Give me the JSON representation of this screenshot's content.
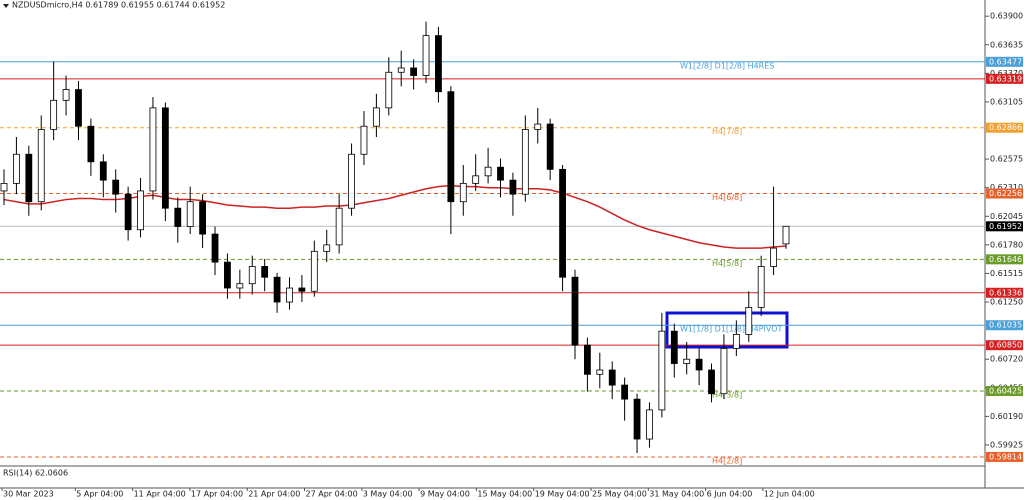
{
  "chart_data": {
    "type": "candlestick",
    "title": "NZDUSDmicro,H4  0.61789 0.61955 0.61744 0.61952",
    "ylim": [
      0.5973,
      0.6405
    ],
    "yticks": [
      {
        "value": 0.639,
        "label": "0.63900"
      },
      0.63635,
      {
        "value": 0.6337,
        "label": "0.63370"
      },
      0.63105,
      0.62575,
      {
        "value": 0.6231,
        "label": "0.62310"
      },
      0.62045,
      {
        "value": 0.6178,
        "label": "0.61780"
      },
      0.61515,
      {
        "value": 0.6125,
        "label": "0.61250"
      },
      {
        "value": 0.6072,
        "label": "0.60720"
      },
      0.60455,
      {
        "value": 0.6019,
        "label": "0.60190"
      },
      0.59925
    ],
    "dates": [
      "30 Mar 2023",
      "5 Apr 04:00",
      "11 Apr 04:00",
      "17 Apr 04:00",
      "21 Apr 04:00",
      "27 Apr 04:00",
      "3 May 04:00",
      "9 May 04:00",
      "15 May 04:00",
      "19 May 04:00",
      "25 May 04:00",
      "31 May 04:00",
      "6 Jun 04:00",
      "12 Jun 04:00"
    ],
    "open": [
      0.6228,
      0.6235,
      0.6262,
      0.6218,
      0.6285,
      0.6312,
      0.6322,
      0.6288,
      0.6255,
      0.6238,
      0.6225,
      0.6192,
      0.6228,
      0.6305,
      0.6212,
      0.6195,
      0.6218,
      0.6188,
      0.6162,
      0.6138,
      0.6142,
      0.6158,
      0.6148,
      0.6125,
      0.6138,
      0.6135,
      0.6172,
      0.6178,
      0.6212,
      0.6262,
      0.6288,
      0.6305,
      0.6338,
      0.6342,
      0.6335,
      0.6372,
      0.632,
      0.6218,
      0.6235,
      0.6242,
      0.625,
      0.6238,
      0.6225,
      0.6285,
      0.629,
      0.6248,
      0.6148,
      0.6085,
      0.6058,
      0.6062,
      0.6048,
      0.6035,
      0.5998,
      0.6025,
      0.6098,
      0.6068,
      0.6072,
      0.6062,
      0.604,
      0.6082,
      0.6095,
      0.612,
      0.6158,
      0.61789
    ],
    "high": [
      0.6248,
      0.6278,
      0.627,
      0.6298,
      0.6348,
      0.6335,
      0.633,
      0.6295,
      0.6262,
      0.6248,
      0.6232,
      0.624,
      0.6315,
      0.631,
      0.6222,
      0.6232,
      0.6225,
      0.6195,
      0.617,
      0.6155,
      0.6168,
      0.6165,
      0.6152,
      0.6148,
      0.615,
      0.6182,
      0.6192,
      0.6225,
      0.6272,
      0.6302,
      0.6318,
      0.6352,
      0.6358,
      0.635,
      0.6385,
      0.638,
      0.6325,
      0.6252,
      0.6262,
      0.6268,
      0.6258,
      0.6245,
      0.6298,
      0.6305,
      0.6295,
      0.6252,
      0.6155,
      0.6092,
      0.6078,
      0.607,
      0.6055,
      0.604,
      0.6032,
      0.6115,
      0.6105,
      0.6088,
      0.6082,
      0.6068,
      0.6095,
      0.6108,
      0.6135,
      0.6168,
      0.6232,
      0.61955
    ],
    "low": [
      0.6215,
      0.6225,
      0.6205,
      0.621,
      0.6275,
      0.6298,
      0.6275,
      0.6242,
      0.6222,
      0.6208,
      0.6182,
      0.6185,
      0.622,
      0.62,
      0.618,
      0.6188,
      0.6175,
      0.615,
      0.6128,
      0.6128,
      0.6132,
      0.6135,
      0.6115,
      0.6118,
      0.6125,
      0.613,
      0.6162,
      0.617,
      0.6205,
      0.6252,
      0.6278,
      0.6298,
      0.6325,
      0.6322,
      0.6328,
      0.631,
      0.6188,
      0.6205,
      0.6228,
      0.6235,
      0.6222,
      0.6205,
      0.6218,
      0.6272,
      0.6238,
      0.6135,
      0.6072,
      0.6042,
      0.6045,
      0.6035,
      0.6015,
      0.5985,
      0.599,
      0.6018,
      0.6055,
      0.6058,
      0.6048,
      0.6032,
      0.6035,
      0.6075,
      0.6088,
      0.6112,
      0.615,
      0.61744
    ],
    "close": [
      0.6235,
      0.6262,
      0.6218,
      0.6285,
      0.6312,
      0.6322,
      0.6288,
      0.6255,
      0.6238,
      0.6225,
      0.6192,
      0.6228,
      0.6305,
      0.6212,
      0.6195,
      0.6218,
      0.6188,
      0.6162,
      0.6138,
      0.6142,
      0.6158,
      0.6148,
      0.6125,
      0.6138,
      0.6135,
      0.6172,
      0.6178,
      0.6212,
      0.6262,
      0.6288,
      0.6305,
      0.6338,
      0.6342,
      0.6335,
      0.6372,
      0.632,
      0.6218,
      0.6235,
      0.6242,
      0.625,
      0.6238,
      0.6225,
      0.6285,
      0.629,
      0.6248,
      0.6148,
      0.6085,
      0.6058,
      0.6062,
      0.6048,
      0.6035,
      0.5998,
      0.6025,
      0.6098,
      0.6068,
      0.6072,
      0.6062,
      0.604,
      0.6082,
      0.6095,
      0.612,
      0.6158,
      0.6175,
      0.61952
    ],
    "moving_average": {
      "color": "#cc2222",
      "values": [
        0.622,
        0.6218,
        0.6216,
        0.6216,
        0.6218,
        0.622,
        0.6221,
        0.6221,
        0.622,
        0.622,
        0.6221,
        0.6223,
        0.6224,
        0.6222,
        0.622,
        0.622,
        0.6219,
        0.6217,
        0.6215,
        0.6214,
        0.6213,
        0.6213,
        0.6212,
        0.6212,
        0.6213,
        0.6213,
        0.6214,
        0.6214,
        0.6215,
        0.6217,
        0.6219,
        0.6221,
        0.6224,
        0.6227,
        0.623,
        0.6232,
        0.6233,
        0.6232,
        0.6232,
        0.6231,
        0.6231,
        0.623,
        0.623,
        0.623,
        0.6229,
        0.6226,
        0.6222,
        0.6218,
        0.6213,
        0.6207,
        0.6201,
        0.6196,
        0.6192,
        0.6189,
        0.6186,
        0.6183,
        0.618,
        0.6178,
        0.6176,
        0.6175,
        0.6175,
        0.6175,
        0.6176,
        0.6177
      ]
    },
    "levels": [
      {
        "name": "W1[2/8] D1[2/8] H4RES",
        "value": 0.63477,
        "color": "#4a9fd8",
        "style": "solid"
      },
      {
        "value": 0.63319,
        "color": "#d42020",
        "style": "solid"
      },
      {
        "name": "H4[7/8]",
        "value": 0.62866,
        "color": "#f0a030",
        "style": "dashed"
      },
      {
        "name": "H4[6/8]",
        "value": 0.62256,
        "color": "#e8602a",
        "style": "dashed"
      },
      {
        "name": "H4[5/8]",
        "value": 0.61646,
        "color": "#6a9a2a",
        "style": "dashed"
      },
      {
        "value": 0.61336,
        "color": "#d42020",
        "style": "solid"
      },
      {
        "name": "W1[1/8] D1[1/8] H4PIVOT",
        "value": 0.61035,
        "color": "#4a9fd8",
        "style": "solid"
      },
      {
        "value": 0.6085,
        "value_label": "0.60850",
        "color": "#d42020",
        "style": "solid"
      },
      {
        "name": "H4[3/8]",
        "value": 0.60425,
        "color": "#6a9a2a",
        "style": "dashed"
      },
      {
        "name": "H4[2/8]",
        "value": 0.59814,
        "color": "#e8602a",
        "style": "dashed"
      }
    ],
    "current_price": 0.61952,
    "rsi_label": "RSI(14) 62.0606"
  }
}
